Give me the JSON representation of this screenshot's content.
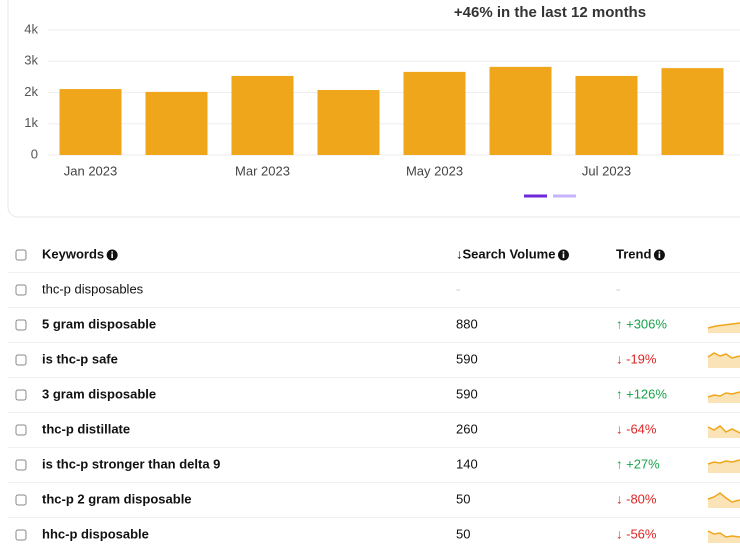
{
  "chart_data": {
    "type": "bar",
    "title": "+46% in the last 12 months",
    "categories": [
      "Jan 2023",
      null,
      "Mar 2023",
      null,
      "May 2023",
      null,
      "Jul 2023",
      null
    ],
    "values": [
      2110,
      2020,
      2530,
      2080,
      2660,
      2820,
      2530,
      2780
    ],
    "color": "#f0a61b",
    "ylim": [
      0,
      4000
    ],
    "yticks": [
      0,
      {
        "value": 1000,
        "label": "1k"
      },
      {
        "value": 2000,
        "label": "2k"
      },
      {
        "value": 3000,
        "label": "3k"
      },
      {
        "value": 4000,
        "label": "4k"
      }
    ],
    "grid": true
  },
  "table": {
    "columns": [
      "Keywords",
      "↓Search Volume",
      "Trend"
    ],
    "rows": [
      [
        "thc-p disposables",
        "-",
        "-"
      ],
      [
        "5 gram disposable",
        "880",
        "↑ +306%"
      ],
      [
        "is thc-p safe",
        "590",
        "↓ -19%"
      ],
      [
        "3 gram disposable",
        "590",
        "↑ +126%"
      ],
      [
        "thc-p distillate",
        "260",
        "↓ -64%"
      ],
      [
        "is thc-p stronger than delta 9",
        "140",
        "↑ +27%"
      ],
      [
        "thc-p 2 gram disposable",
        "50",
        "↓ -80%"
      ],
      [
        "hhc-p disposable",
        "50",
        "↓ -56%"
      ]
    ]
  }
}
